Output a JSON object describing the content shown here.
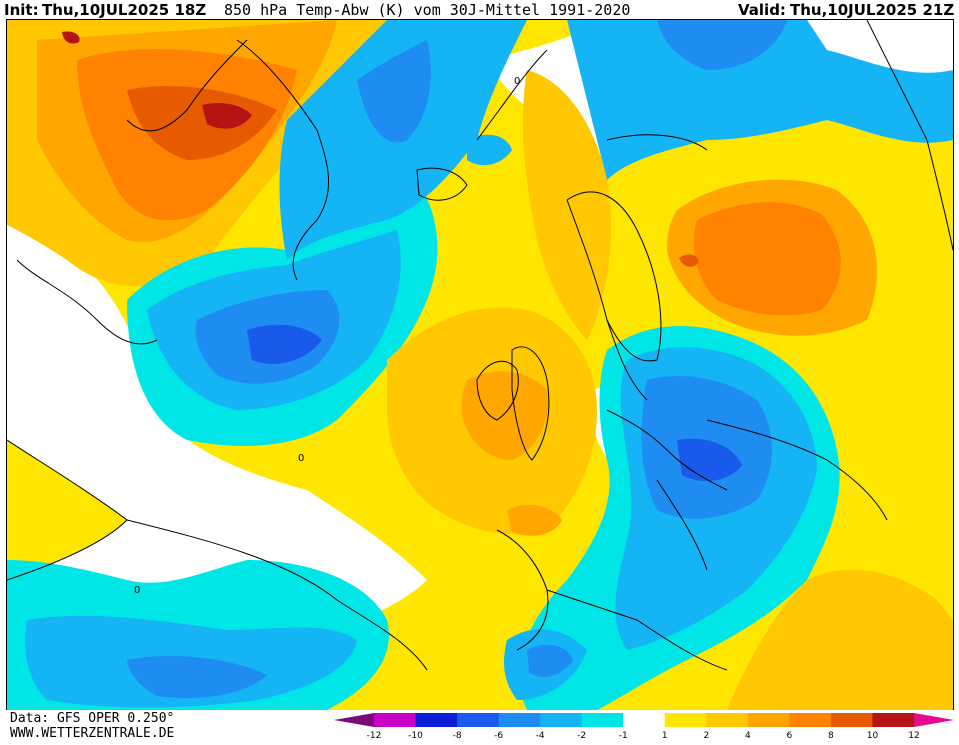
{
  "header": {
    "init_label": "Init:",
    "init_value": "Thu,10JUL2025 18Z",
    "title": "850 hPa Temp-Abw (K) vom 30J-Mittel 1991-2020",
    "valid_label": "Valid:",
    "valid_value": "Thu,10JUL2025 21Z"
  },
  "footer": {
    "data_source": "Data: GFS OPER 0.250°",
    "website": "WWW.WETTERZENTRALE.DE"
  },
  "legend": {
    "colors": [
      "#7a0a7a",
      "#c800c8",
      "#0f1fd9",
      "#1a5aeb",
      "#1e8cf0",
      "#14b4f5",
      "#00e6e6",
      "#ffffff",
      "#ffe600",
      "#ffc800",
      "#ffa600",
      "#ff8200",
      "#e65a00",
      "#b41414",
      "#e60a8c"
    ],
    "ticks": [
      "-12",
      "-10",
      "-8",
      "-6",
      "-4",
      "-2",
      "-1",
      "1",
      "2",
      "4",
      "6",
      "8",
      "10",
      "12"
    ]
  },
  "map": {
    "contour_label": "0",
    "colors": {
      "warm1": "#ffe600",
      "warm2": "#ffc800",
      "warm3": "#ffa600",
      "warm4": "#ff8200",
      "warm5": "#e65a00",
      "warm6": "#b41414",
      "cool1": "#00e6e6",
      "cool2": "#14b4f5",
      "cool3": "#1e8cf0",
      "cool4": "#1a5aeb",
      "cool5": "#0f1fd9",
      "neutral": "#ffffff"
    }
  }
}
